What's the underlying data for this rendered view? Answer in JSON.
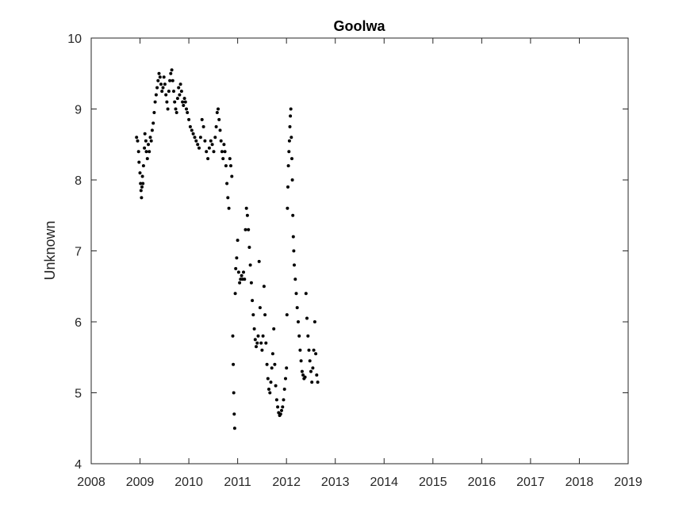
{
  "chart_data": {
    "type": "scatter",
    "title": "Goolwa",
    "xlabel": "",
    "ylabel": "Unknown",
    "xlim": [
      2008,
      2019
    ],
    "ylim": [
      4,
      10
    ],
    "xticks": [
      "2008",
      "2009",
      "2010",
      "2011",
      "2012",
      "2013",
      "2014",
      "2015",
      "2016",
      "2017",
      "2018",
      "2019"
    ],
    "yticks": [
      "4",
      "5",
      "6",
      "7",
      "8",
      "9",
      "10"
    ],
    "grid": false,
    "marker_color": "#000000",
    "series": [
      {
        "points": [
          [
            2008.93,
            8.6
          ],
          [
            2008.95,
            8.55
          ],
          [
            2008.97,
            8.4
          ],
          [
            2008.98,
            8.25
          ],
          [
            2009.0,
            8.1
          ],
          [
            2009.01,
            7.95
          ],
          [
            2009.02,
            7.85
          ],
          [
            2009.03,
            7.75
          ],
          [
            2009.04,
            7.9
          ],
          [
            2009.05,
            8.05
          ],
          [
            2009.06,
            7.95
          ],
          [
            2009.07,
            8.2
          ],
          [
            2009.09,
            8.45
          ],
          [
            2009.1,
            8.65
          ],
          [
            2009.12,
            8.55
          ],
          [
            2009.13,
            8.4
          ],
          [
            2009.15,
            8.3
          ],
          [
            2009.17,
            8.5
          ],
          [
            2009.19,
            8.4
          ],
          [
            2009.21,
            8.6
          ],
          [
            2009.23,
            8.55
          ],
          [
            2009.25,
            8.7
          ],
          [
            2009.27,
            8.8
          ],
          [
            2009.29,
            8.95
          ],
          [
            2009.31,
            9.1
          ],
          [
            2009.33,
            9.2
          ],
          [
            2009.35,
            9.3
          ],
          [
            2009.37,
            9.4
          ],
          [
            2009.39,
            9.5
          ],
          [
            2009.41,
            9.45
          ],
          [
            2009.43,
            9.35
          ],
          [
            2009.45,
            9.25
          ],
          [
            2009.47,
            9.3
          ],
          [
            2009.49,
            9.45
          ],
          [
            2009.51,
            9.35
          ],
          [
            2009.53,
            9.2
          ],
          [
            2009.55,
            9.1
          ],
          [
            2009.57,
            9.0
          ],
          [
            2009.59,
            9.25
          ],
          [
            2009.61,
            9.4
          ],
          [
            2009.63,
            9.5
          ],
          [
            2009.65,
            9.55
          ],
          [
            2009.67,
            9.4
          ],
          [
            2009.69,
            9.25
          ],
          [
            2009.71,
            9.1
          ],
          [
            2009.73,
            9.0
          ],
          [
            2009.75,
            8.95
          ],
          [
            2009.77,
            9.15
          ],
          [
            2009.79,
            9.3
          ],
          [
            2009.81,
            9.2
          ],
          [
            2009.83,
            9.35
          ],
          [
            2009.85,
            9.25
          ],
          [
            2009.87,
            9.1
          ],
          [
            2009.89,
            9.05
          ],
          [
            2009.91,
            9.15
          ],
          [
            2009.93,
            9.1
          ],
          [
            2009.95,
            9.0
          ],
          [
            2009.97,
            8.95
          ],
          [
            2010.0,
            8.85
          ],
          [
            2010.03,
            8.75
          ],
          [
            2010.06,
            8.7
          ],
          [
            2010.09,
            8.65
          ],
          [
            2010.12,
            8.6
          ],
          [
            2010.15,
            8.55
          ],
          [
            2010.18,
            8.5
          ],
          [
            2010.21,
            8.45
          ],
          [
            2010.24,
            8.6
          ],
          [
            2010.27,
            8.85
          ],
          [
            2010.3,
            8.75
          ],
          [
            2010.33,
            8.55
          ],
          [
            2010.36,
            8.4
          ],
          [
            2010.39,
            8.3
          ],
          [
            2010.42,
            8.45
          ],
          [
            2010.45,
            8.55
          ],
          [
            2010.48,
            8.5
          ],
          [
            2010.51,
            8.4
          ],
          [
            2010.54,
            8.6
          ],
          [
            2010.56,
            8.75
          ],
          [
            2010.58,
            8.95
          ],
          [
            2010.6,
            9.0
          ],
          [
            2010.62,
            8.85
          ],
          [
            2010.64,
            8.7
          ],
          [
            2010.66,
            8.55
          ],
          [
            2010.68,
            8.4
          ],
          [
            2010.7,
            8.3
          ],
          [
            2010.72,
            8.5
          ],
          [
            2010.74,
            8.4
          ],
          [
            2010.76,
            8.2
          ],
          [
            2010.78,
            7.95
          ],
          [
            2010.8,
            7.75
          ],
          [
            2010.82,
            7.6
          ],
          [
            2010.84,
            8.3
          ],
          [
            2010.86,
            8.2
          ],
          [
            2010.88,
            8.05
          ],
          [
            2010.9,
            5.8
          ],
          [
            2010.91,
            5.4
          ],
          [
            2010.92,
            5.0
          ],
          [
            2010.93,
            4.7
          ],
          [
            2010.94,
            4.5
          ],
          [
            2010.95,
            6.4
          ],
          [
            2010.96,
            6.75
          ],
          [
            2010.98,
            6.9
          ],
          [
            2011.0,
            7.15
          ],
          [
            2011.02,
            6.7
          ],
          [
            2011.04,
            6.55
          ],
          [
            2011.06,
            6.6
          ],
          [
            2011.08,
            6.65
          ],
          [
            2011.1,
            6.6
          ],
          [
            2011.12,
            6.7
          ],
          [
            2011.14,
            6.6
          ],
          [
            2011.16,
            7.3
          ],
          [
            2011.18,
            7.6
          ],
          [
            2011.2,
            7.5
          ],
          [
            2011.22,
            7.3
          ],
          [
            2011.24,
            7.05
          ],
          [
            2011.26,
            6.8
          ],
          [
            2011.28,
            6.55
          ],
          [
            2011.3,
            6.3
          ],
          [
            2011.32,
            6.1
          ],
          [
            2011.34,
            5.9
          ],
          [
            2011.36,
            5.75
          ],
          [
            2011.38,
            5.65
          ],
          [
            2011.4,
            5.7
          ],
          [
            2011.42,
            5.8
          ],
          [
            2011.44,
            6.85
          ],
          [
            2011.46,
            6.2
          ],
          [
            2011.48,
            5.7
          ],
          [
            2011.5,
            5.6
          ],
          [
            2011.52,
            5.8
          ],
          [
            2011.54,
            6.5
          ],
          [
            2011.56,
            6.1
          ],
          [
            2011.58,
            5.7
          ],
          [
            2011.6,
            5.4
          ],
          [
            2011.62,
            5.2
          ],
          [
            2011.64,
            5.05
          ],
          [
            2011.66,
            5.0
          ],
          [
            2011.68,
            5.15
          ],
          [
            2011.7,
            5.35
          ],
          [
            2011.72,
            5.55
          ],
          [
            2011.74,
            5.9
          ],
          [
            2011.76,
            5.4
          ],
          [
            2011.78,
            5.1
          ],
          [
            2011.8,
            4.9
          ],
          [
            2011.82,
            4.8
          ],
          [
            2011.84,
            4.72
          ],
          [
            2011.86,
            4.68
          ],
          [
            2011.88,
            4.7
          ],
          [
            2011.9,
            4.75
          ],
          [
            2011.92,
            4.8
          ],
          [
            2011.94,
            4.9
          ],
          [
            2011.96,
            5.05
          ],
          [
            2011.98,
            5.2
          ],
          [
            2012.0,
            5.35
          ],
          [
            2012.01,
            6.1
          ],
          [
            2012.02,
            7.6
          ],
          [
            2012.03,
            7.9
          ],
          [
            2012.04,
            8.2
          ],
          [
            2012.05,
            8.4
          ],
          [
            2012.06,
            8.55
          ],
          [
            2012.07,
            8.75
          ],
          [
            2012.08,
            8.9
          ],
          [
            2012.09,
            9.0
          ],
          [
            2012.1,
            8.6
          ],
          [
            2012.11,
            8.3
          ],
          [
            2012.12,
            8.0
          ],
          [
            2012.13,
            7.5
          ],
          [
            2012.14,
            7.2
          ],
          [
            2012.15,
            7.0
          ],
          [
            2012.16,
            6.8
          ],
          [
            2012.18,
            6.6
          ],
          [
            2012.2,
            6.4
          ],
          [
            2012.22,
            6.2
          ],
          [
            2012.24,
            6.0
          ],
          [
            2012.26,
            5.8
          ],
          [
            2012.28,
            5.6
          ],
          [
            2012.3,
            5.45
          ],
          [
            2012.32,
            5.3
          ],
          [
            2012.34,
            5.25
          ],
          [
            2012.36,
            5.2
          ],
          [
            2012.38,
            5.22
          ],
          [
            2012.4,
            6.4
          ],
          [
            2012.42,
            6.05
          ],
          [
            2012.44,
            5.8
          ],
          [
            2012.46,
            5.6
          ],
          [
            2012.48,
            5.45
          ],
          [
            2012.5,
            5.3
          ],
          [
            2012.52,
            5.15
          ],
          [
            2012.54,
            5.35
          ],
          [
            2012.56,
            5.6
          ],
          [
            2012.58,
            6.0
          ],
          [
            2012.6,
            5.55
          ],
          [
            2012.62,
            5.25
          ],
          [
            2012.64,
            5.15
          ]
        ]
      }
    ]
  }
}
